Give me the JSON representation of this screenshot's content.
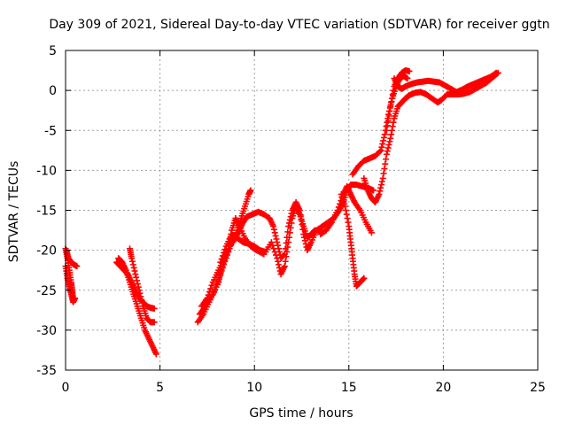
{
  "chart_data": {
    "type": "scatter",
    "title": "Day 309 of 2021, Sidereal Day-to-day VTEC variation (SDTVAR) for receiver ggtn",
    "xlabel": "GPS time / hours",
    "ylabel": "SDTVAR / TECUs",
    "xlim": [
      0,
      25
    ],
    "ylim": [
      -35,
      5
    ],
    "xticks": [
      "0",
      "5",
      "10",
      "15",
      "20",
      "25"
    ],
    "yticks": [
      "5",
      "0",
      "-5",
      "-10",
      "-15",
      "-20",
      "-25",
      "-30",
      "-35"
    ],
    "grid": true,
    "marker": "+",
    "colors": {
      "series": "#ff0000",
      "grid": "#a0a0a0",
      "axes": "#000000"
    },
    "series": [
      {
        "name": "SDTVAR",
        "tracks": [
          {
            "points": [
              [
                0.0,
                -19.8
              ],
              [
                0.1,
                -21
              ],
              [
                0.2,
                -22.5
              ],
              [
                0.3,
                -24
              ],
              [
                0.35,
                -25
              ],
              [
                0.4,
                -26
              ]
            ]
          },
          {
            "points": [
              [
                0.0,
                -22
              ],
              [
                0.1,
                -23.5
              ],
              [
                0.2,
                -24.5
              ],
              [
                0.3,
                -25.5
              ],
              [
                0.4,
                -26.5
              ],
              [
                0.5,
                -26
              ]
            ]
          },
          {
            "points": [
              [
                0.05,
                -20
              ],
              [
                0.15,
                -21
              ],
              [
                0.3,
                -21.5
              ],
              [
                0.45,
                -21.8
              ],
              [
                0.6,
                -22
              ]
            ]
          },
          {
            "points": [
              [
                2.7,
                -21.5
              ],
              [
                2.9,
                -22
              ],
              [
                3.1,
                -22.5
              ],
              [
                3.3,
                -23
              ],
              [
                3.5,
                -24
              ],
              [
                3.7,
                -25
              ],
              [
                3.9,
                -26
              ],
              [
                4.1,
                -26.5
              ],
              [
                4.3,
                -27
              ],
              [
                4.5,
                -27.2
              ],
              [
                4.7,
                -27.3
              ]
            ]
          },
          {
            "points": [
              [
                2.8,
                -21
              ],
              [
                3.0,
                -21.5
              ],
              [
                3.2,
                -22.5
              ],
              [
                3.4,
                -24
              ],
              [
                3.6,
                -25.5
              ],
              [
                3.8,
                -27
              ],
              [
                4.0,
                -28.5
              ],
              [
                4.2,
                -30
              ],
              [
                4.4,
                -31
              ],
              [
                4.6,
                -32
              ],
              [
                4.8,
                -33
              ]
            ]
          },
          {
            "points": [
              [
                3.4,
                -19.8
              ],
              [
                3.5,
                -21
              ],
              [
                3.7,
                -23
              ],
              [
                3.9,
                -25
              ],
              [
                4.1,
                -27
              ],
              [
                4.3,
                -28.5
              ],
              [
                4.5,
                -29
              ],
              [
                4.7,
                -29
              ]
            ]
          },
          {
            "points": [
              [
                7.0,
                -29
              ],
              [
                7.3,
                -28
              ],
              [
                7.6,
                -26.5
              ],
              [
                7.9,
                -25
              ],
              [
                8.2,
                -23
              ],
              [
                8.5,
                -21
              ],
              [
                8.8,
                -19
              ],
              [
                9.1,
                -17.5
              ],
              [
                9.3,
                -16
              ],
              [
                9.5,
                -14.5
              ],
              [
                9.7,
                -13
              ],
              [
                9.8,
                -12.5
              ]
            ]
          },
          {
            "points": [
              [
                7.1,
                -28
              ],
              [
                7.4,
                -27
              ],
              [
                7.8,
                -25.5
              ],
              [
                8.1,
                -24
              ],
              [
                8.3,
                -22
              ],
              [
                8.6,
                -20
              ],
              [
                8.8,
                -17.5
              ],
              [
                9.0,
                -16
              ],
              [
                9.2,
                -17
              ],
              [
                9.5,
                -18.5
              ],
              [
                9.8,
                -19.5
              ],
              [
                10.1,
                -20
              ],
              [
                10.5,
                -20.5
              ],
              [
                10.9,
                -19
              ],
              [
                11.2,
                -21
              ],
              [
                11.4,
                -23
              ],
              [
                11.6,
                -22
              ],
              [
                11.8,
                -19
              ],
              [
                12.0,
                -16
              ],
              [
                12.2,
                -14.5
              ],
              [
                12.4,
                -15.5
              ],
              [
                12.6,
                -17
              ],
              [
                12.8,
                -18.5
              ],
              [
                13.0,
                -18
              ],
              [
                13.2,
                -17.5
              ],
              [
                13.4,
                -17.5
              ],
              [
                13.6,
                -17.8
              ]
            ]
          },
          {
            "points": [
              [
                7.2,
                -27
              ],
              [
                7.5,
                -26
              ],
              [
                7.8,
                -24
              ],
              [
                8.1,
                -22.5
              ],
              [
                8.4,
                -21
              ],
              [
                8.7,
                -19.5
              ],
              [
                9.0,
                -18.5
              ],
              [
                9.2,
                -17.5
              ],
              [
                9.4,
                -16.5
              ],
              [
                9.6,
                -15.8
              ],
              [
                9.9,
                -15.5
              ],
              [
                10.2,
                -15.2
              ],
              [
                10.5,
                -15.5
              ],
              [
                10.8,
                -16
              ],
              [
                11.0,
                -17
              ],
              [
                11.2,
                -19
              ],
              [
                11.4,
                -21
              ],
              [
                11.6,
                -20.5
              ],
              [
                11.8,
                -17
              ],
              [
                12.0,
                -15
              ],
              [
                12.2,
                -14
              ],
              [
                12.4,
                -15
              ],
              [
                12.6,
                -18
              ],
              [
                12.8,
                -20
              ],
              [
                13.0,
                -19
              ],
              [
                13.3,
                -17.5
              ],
              [
                13.6,
                -17
              ],
              [
                13.9,
                -16.5
              ],
              [
                14.2,
                -16
              ],
              [
                14.5,
                -15
              ],
              [
                14.7,
                -14
              ],
              [
                14.9,
                -12.5
              ],
              [
                15.1,
                -11.8
              ],
              [
                15.4,
                -11.8
              ],
              [
                15.7,
                -12
              ],
              [
                16.0,
                -12.2
              ],
              [
                16.3,
                -12.5
              ]
            ]
          },
          {
            "points": [
              [
                8.2,
                -21.5
              ],
              [
                8.5,
                -19.5
              ],
              [
                8.8,
                -18
              ],
              [
                9.1,
                -18.5
              ],
              [
                9.4,
                -19
              ],
              [
                9.7,
                -19.2
              ],
              [
                10.0,
                -19.5
              ],
              [
                10.3,
                -20
              ],
              [
                10.6,
                -20.2
              ]
            ]
          },
          {
            "points": [
              [
                13.5,
                -18
              ],
              [
                13.8,
                -17.5
              ],
              [
                14.1,
                -16.5
              ],
              [
                14.4,
                -15
              ],
              [
                14.7,
                -13
              ],
              [
                14.9,
                -12
              ],
              [
                15.1,
                -13
              ],
              [
                15.3,
                -14
              ],
              [
                15.6,
                -15
              ],
              [
                15.9,
                -16.5
              ],
              [
                16.2,
                -17.8
              ]
            ]
          },
          {
            "points": [
              [
                14.6,
                -13
              ],
              [
                14.8,
                -14.5
              ],
              [
                15.0,
                -17
              ],
              [
                15.1,
                -19
              ],
              [
                15.2,
                -21
              ],
              [
                15.3,
                -23
              ],
              [
                15.4,
                -24.5
              ],
              [
                15.6,
                -24
              ],
              [
                15.8,
                -23.5
              ]
            ]
          },
          {
            "points": [
              [
                15.2,
                -10.5
              ],
              [
                15.5,
                -9.5
              ],
              [
                15.8,
                -8.8
              ],
              [
                16.1,
                -8.5
              ],
              [
                16.4,
                -8.2
              ],
              [
                16.7,
                -7.5
              ],
              [
                16.9,
                -5.5
              ],
              [
                17.1,
                -3
              ],
              [
                17.3,
                -1
              ],
              [
                17.5,
                0.5
              ],
              [
                17.7,
                1.5
              ],
              [
                17.9,
                1.8
              ],
              [
                18.1,
                1.5
              ]
            ]
          },
          {
            "points": [
              [
                15.8,
                -11
              ],
              [
                16.0,
                -12.5
              ],
              [
                16.2,
                -13.5
              ],
              [
                16.4,
                -14
              ],
              [
                16.6,
                -13
              ],
              [
                16.8,
                -11
              ],
              [
                17.0,
                -8
              ],
              [
                17.2,
                -6
              ],
              [
                17.4,
                -3.5
              ],
              [
                17.6,
                -2
              ],
              [
                17.8,
                -1.5
              ],
              [
                18.0,
                -1
              ],
              [
                18.2,
                -0.6
              ],
              [
                18.5,
                -0.3
              ],
              [
                18.8,
                -0.2
              ],
              [
                19.1,
                -0.5
              ],
              [
                19.4,
                -1
              ],
              [
                19.7,
                -1.5
              ],
              [
                19.9,
                -1.2
              ],
              [
                20.2,
                -0.5
              ],
              [
                20.5,
                -0.5
              ],
              [
                20.8,
                -0.5
              ],
              [
                21.1,
                -0.4
              ],
              [
                21.4,
                -0.2
              ],
              [
                21.7,
                0.2
              ],
              [
                22.0,
                0.6
              ],
              [
                22.3,
                1
              ],
              [
                22.6,
                1.6
              ],
              [
                22.9,
                2.2
              ]
            ]
          },
          {
            "points": [
              [
                17.4,
                1.5
              ],
              [
                17.6,
                0.5
              ],
              [
                17.8,
                0.2
              ],
              [
                18.0,
                0.5
              ],
              [
                18.3,
                0.8
              ],
              [
                18.6,
                1
              ],
              [
                18.9,
                1.1
              ],
              [
                19.2,
                1.2
              ],
              [
                19.5,
                1.1
              ],
              [
                19.8,
                1
              ],
              [
                20.1,
                0.6
              ],
              [
                20.4,
                0.2
              ],
              [
                20.7,
                -0.2
              ],
              [
                21.0,
                0.1
              ],
              [
                21.3,
                0.5
              ],
              [
                21.6,
                0.8
              ],
              [
                21.9,
                1.1
              ],
              [
                22.2,
                1.4
              ],
              [
                22.5,
                1.7
              ],
              [
                22.8,
                2.2
              ]
            ]
          },
          {
            "points": [
              [
                17.0,
                -5
              ],
              [
                17.2,
                -2
              ],
              [
                17.4,
                0.5
              ],
              [
                17.6,
                1.5
              ],
              [
                17.8,
                2.2
              ],
              [
                18.0,
                2.5
              ],
              [
                18.2,
                2.4
              ]
            ]
          }
        ]
      }
    ]
  }
}
